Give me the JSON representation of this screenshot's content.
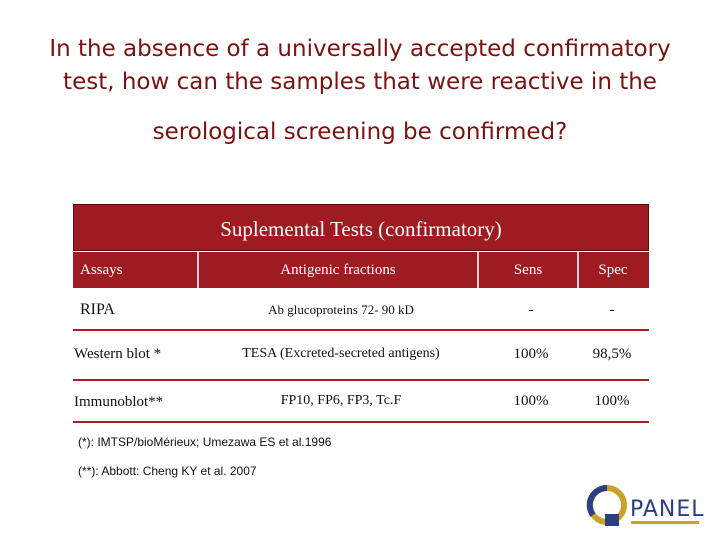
{
  "title": {
    "lines": [
      "In the absence of a universally accepted confirmatory",
      "test, how can the samples that were reactive in the",
      "serological screening be confirmed?"
    ]
  },
  "table": {
    "caption": "Suplemental Tests (confirmatory)",
    "header": [
      "Assays",
      "Antigenic fractions",
      "Sens",
      "Spec"
    ],
    "rows": [
      [
        "RIPA",
        "Ab  glucoproteins 72- 90 kD",
        "-",
        "-"
      ],
      [
        "Western blot  *",
        "TESA (Excreted-secreted antigens)",
        "100%",
        "98,5%"
      ],
      [
        "Immunoblot**",
        "FP10, FP6, FP3, Tc.F",
        "100%",
        "100%"
      ]
    ]
  },
  "footnotes": [
    "(*): IMTSP/bioMérieux; Umezawa ES et al.1996",
    "(**): Abbott: Cheng KY et al. 2007"
  ],
  "logo": {
    "text": "PANEL"
  }
}
